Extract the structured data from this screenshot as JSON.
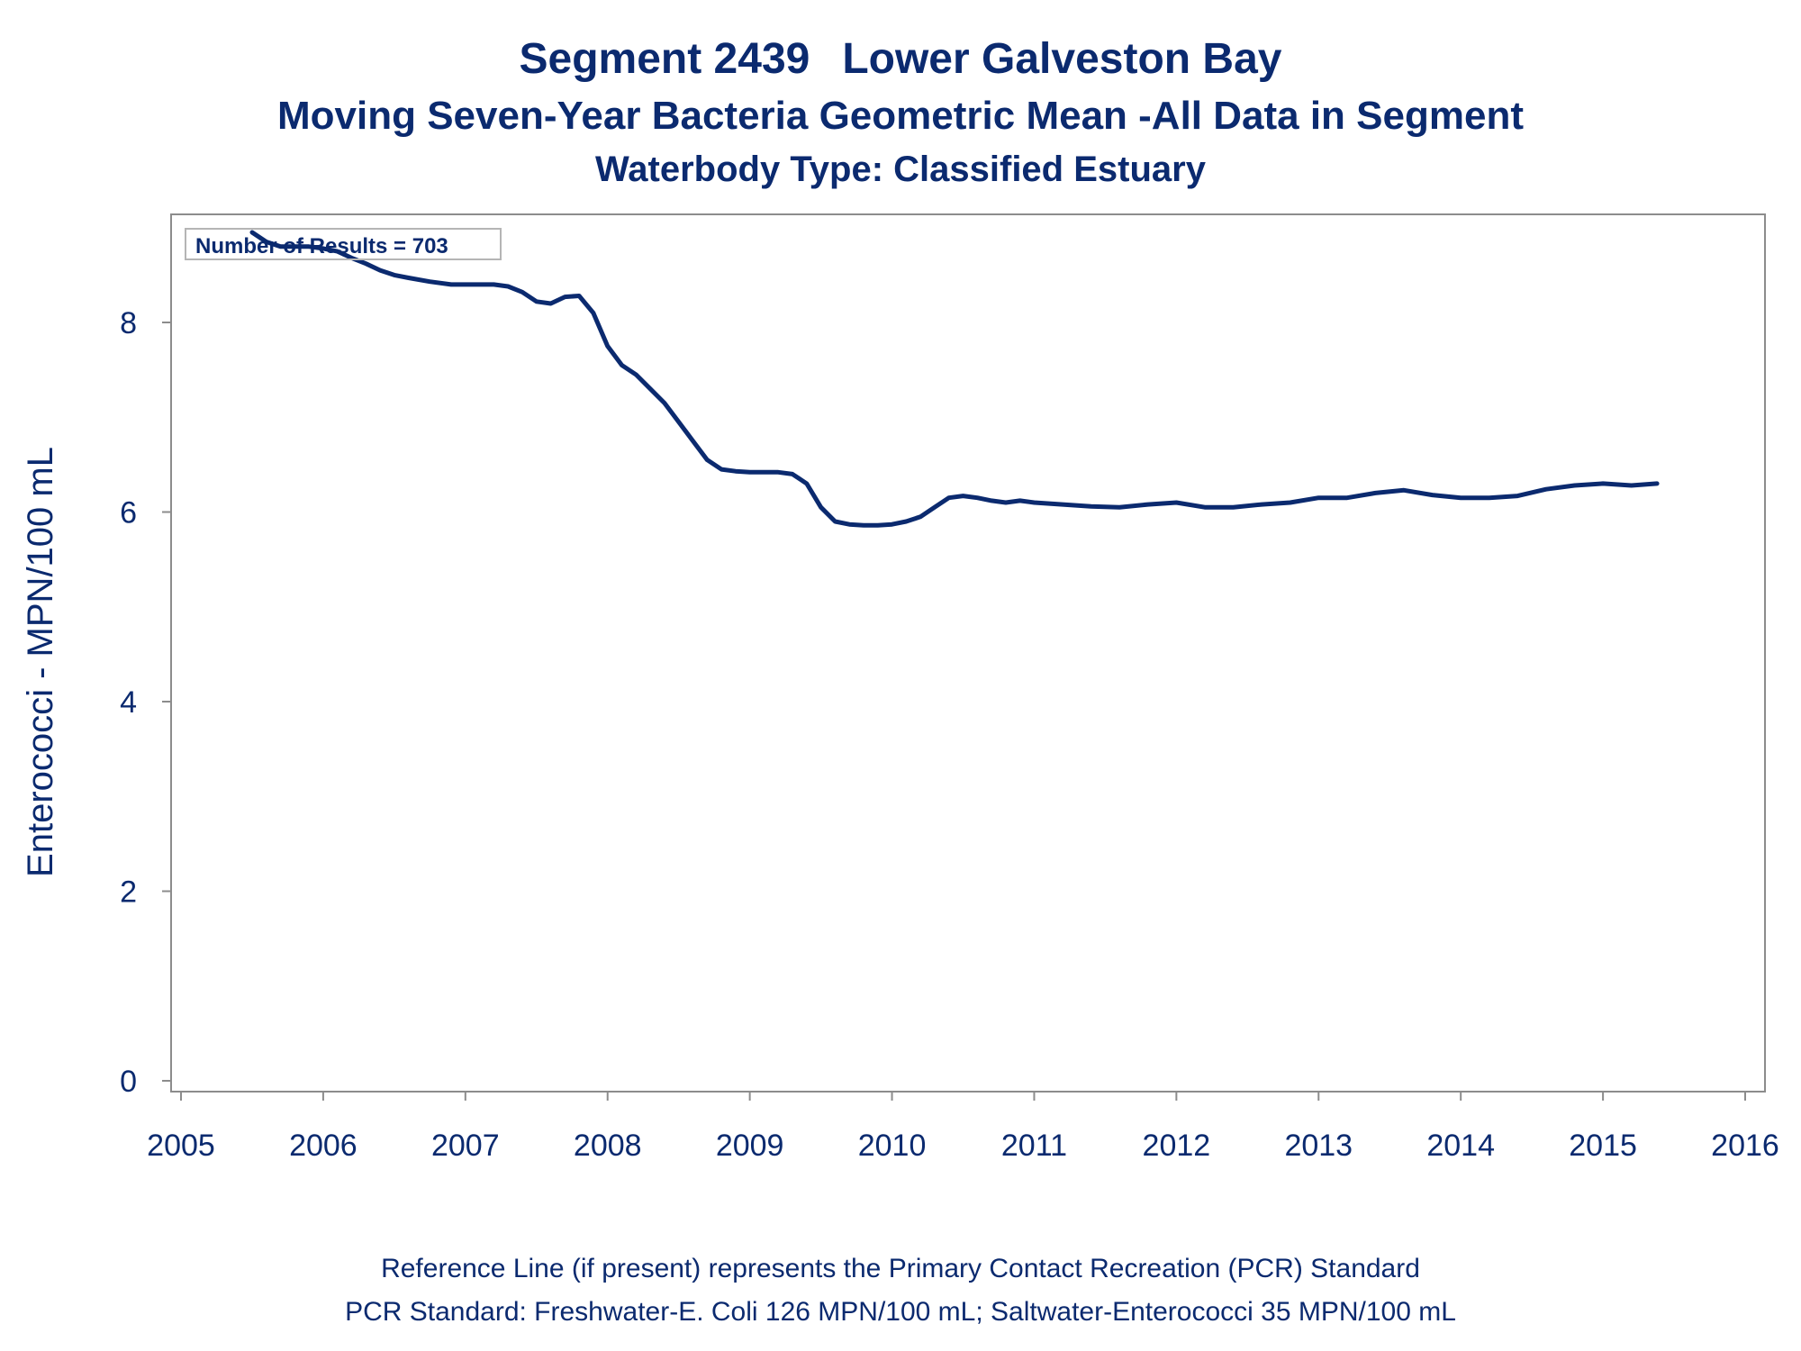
{
  "titles": {
    "segment": "Segment 2439",
    "waterbody": "Lower Galveston Bay",
    "subtitle": "Moving Seven-Year Bacteria Geometric Mean -All Data in Segment",
    "type_line": "Waterbody Type: Classified Estuary"
  },
  "footer": {
    "line1": "Reference Line (if present) represents the Primary Contact Recreation (PCR) Standard",
    "line2": "PCR Standard: Freshwater-E. Coli 126 MPN/100 mL; Saltwater-Enterococci 35 MPN/100 mL"
  },
  "chart_data": {
    "type": "line",
    "ylabel": "Enterococci - MPN/100 mL",
    "xlabel": "",
    "annotation": "Number of Results = 703",
    "xlim": [
      2005,
      2016
    ],
    "ylim": [
      0,
      9.2
    ],
    "x_ticks": [
      2005,
      2006,
      2007,
      2008,
      2009,
      2010,
      2011,
      2012,
      2013,
      2014,
      2015,
      2016
    ],
    "y_ticks": [
      0,
      2,
      4,
      6,
      8
    ],
    "grid": false,
    "line_color": "#0b2a6f",
    "series": [
      {
        "x": [
          2005.5,
          2005.6,
          2005.7,
          2005.8,
          2005.9,
          2006.0,
          2006.1,
          2006.2,
          2006.3,
          2006.4,
          2006.5,
          2006.6,
          2006.75,
          2006.9,
          2007.0,
          2007.1,
          2007.2,
          2007.3,
          2007.4,
          2007.5,
          2007.6,
          2007.7,
          2007.8,
          2007.9,
          2008.0,
          2008.1,
          2008.2,
          2008.3,
          2008.4,
          2008.5,
          2008.6,
          2008.7,
          2008.8,
          2008.9,
          2009.0,
          2009.1,
          2009.2,
          2009.3,
          2009.4,
          2009.5,
          2009.6,
          2009.7,
          2009.8,
          2009.9,
          2010.0,
          2010.1,
          2010.2,
          2010.3,
          2010.4,
          2010.5,
          2010.6,
          2010.7,
          2010.8,
          2010.9,
          2011.0,
          2011.2,
          2011.4,
          2011.6,
          2011.8,
          2012.0,
          2012.2,
          2012.4,
          2012.6,
          2012.8,
          2013.0,
          2013.2,
          2013.4,
          2013.6,
          2013.8,
          2014.0,
          2014.2,
          2014.4,
          2014.6,
          2014.8,
          2015.0,
          2015.2,
          2015.38
        ],
        "values": [
          8.95,
          8.85,
          8.8,
          8.8,
          8.8,
          8.78,
          8.75,
          8.68,
          8.62,
          8.55,
          8.5,
          8.47,
          8.43,
          8.4,
          8.4,
          8.4,
          8.4,
          8.38,
          8.32,
          8.22,
          8.2,
          8.27,
          8.28,
          8.1,
          7.75,
          7.55,
          7.45,
          7.3,
          7.15,
          6.95,
          6.75,
          6.55,
          6.45,
          6.43,
          6.42,
          6.42,
          6.42,
          6.4,
          6.3,
          6.05,
          5.9,
          5.87,
          5.86,
          5.86,
          5.87,
          5.9,
          5.95,
          6.05,
          6.15,
          6.17,
          6.15,
          6.12,
          6.1,
          6.12,
          6.1,
          6.08,
          6.06,
          6.05,
          6.08,
          6.1,
          6.05,
          6.05,
          6.08,
          6.1,
          6.15,
          6.15,
          6.2,
          6.23,
          6.18,
          6.15,
          6.15,
          6.17,
          6.24,
          6.28,
          6.3,
          6.28,
          6.3
        ]
      }
    ]
  }
}
